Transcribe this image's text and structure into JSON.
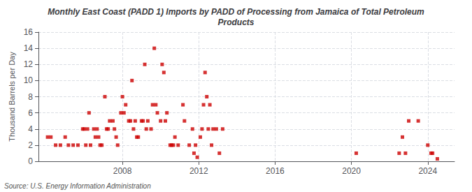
{
  "chart_data": {
    "type": "scatter",
    "title": "Monthly East Coast (PADD 1) Imports by PADD of Processing from Jamaica of Total Petroleum\nProducts",
    "ylabel": "Thousand Barrels per Day",
    "annotations": [
      "Source: U.S. Energy Information Administration"
    ],
    "color": "#cc0000",
    "marker": "square",
    "grid": true,
    "xlim": [
      2003.6,
      2025.4
    ],
    "xticks": [
      2008,
      2012,
      2016,
      2020,
      2024
    ],
    "ylim": [
      0,
      16
    ],
    "yticks": [
      0,
      2,
      4,
      6,
      8,
      10,
      12,
      14,
      16
    ],
    "x": [
      2004.08,
      2004.25,
      2004.5,
      2004.75,
      2005.0,
      2005.17,
      2005.42,
      2005.67,
      2005.92,
      2006.0,
      2006.08,
      2006.17,
      2006.25,
      2006.33,
      2006.5,
      2006.58,
      2006.67,
      2006.75,
      2006.83,
      2006.92,
      2007.08,
      2007.17,
      2007.25,
      2007.33,
      2007.5,
      2007.58,
      2007.67,
      2007.75,
      2007.92,
      2008.0,
      2008.08,
      2008.17,
      2008.33,
      2008.42,
      2008.5,
      2008.58,
      2008.67,
      2008.75,
      2008.83,
      2009.0,
      2009.08,
      2009.17,
      2009.25,
      2009.33,
      2009.5,
      2009.58,
      2009.67,
      2009.75,
      2009.83,
      2010.0,
      2010.08,
      2010.17,
      2010.25,
      2010.33,
      2010.5,
      2010.58,
      2010.67,
      2010.75,
      2010.92,
      2011.17,
      2011.25,
      2011.5,
      2011.67,
      2011.75,
      2011.83,
      2011.92,
      2012.08,
      2012.17,
      2012.25,
      2012.33,
      2012.42,
      2012.5,
      2012.58,
      2012.67,
      2012.75,
      2012.92,
      2013.08,
      2013.25,
      2020.25,
      2022.5,
      2022.67,
      2022.83,
      2023.0,
      2023.5,
      2024.0,
      2024.17,
      2024.25,
      2024.5
    ],
    "values": [
      3,
      3,
      2,
      2,
      3,
      2,
      2,
      2,
      4,
      4,
      2,
      4,
      6,
      2,
      4,
      3,
      4,
      3,
      2,
      2,
      8,
      4,
      4,
      5,
      5,
      4,
      3,
      2,
      6,
      8,
      6,
      7,
      5,
      5,
      10,
      4,
      5,
      3,
      3,
      5,
      5,
      12,
      4,
      5,
      4,
      7,
      14,
      7,
      6,
      5,
      12,
      11,
      5,
      6,
      2,
      2,
      2,
      3,
      2,
      7,
      5,
      2,
      4,
      1,
      2,
      0.5,
      3,
      4,
      7,
      11,
      8,
      4,
      7,
      2,
      4,
      4,
      1,
      4,
      1,
      1,
      3,
      1,
      5,
      5,
      2,
      1,
      1,
      0.3
    ]
  }
}
